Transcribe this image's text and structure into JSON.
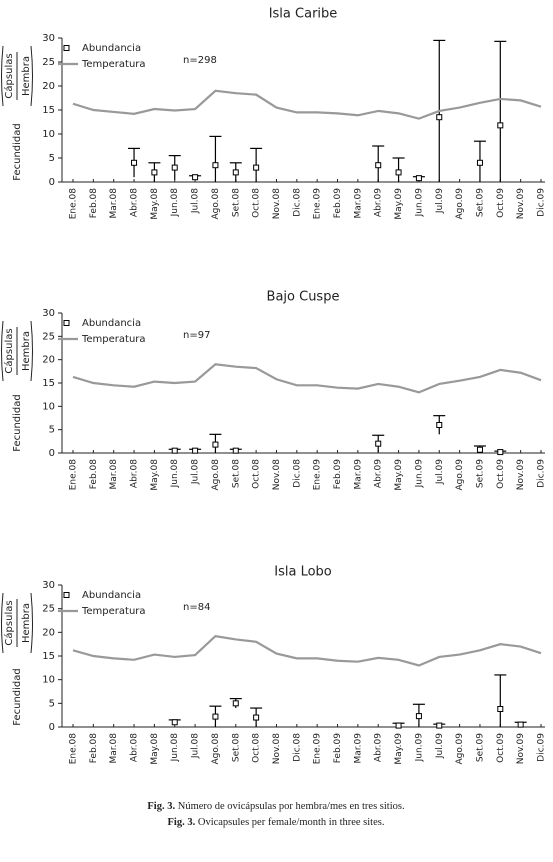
{
  "chart_data": [
    {
      "type": "line",
      "title": "Isla Caribe",
      "annotation": "n=298",
      "ylabel": {
        "main": "Fecundidad",
        "numerator": "Cápsulas",
        "denominator": "Hembra"
      },
      "categories": [
        "Ene.08",
        "Feb.08",
        "Mar.08",
        "Abr.08",
        "May.08",
        "Jun.08",
        "Jul.08",
        "Ago.08",
        "Set.08",
        "Oct.08",
        "Nov.08",
        "Dic.08",
        "Ene.09",
        "Feb.09",
        "Mar.09",
        "Abr.09",
        "May.09",
        "Jun.09",
        "Jul.09",
        "Ago.09",
        "Set.09",
        "Oct.09",
        "Nov.09",
        "Dic.09"
      ],
      "ylim": [
        0,
        30
      ],
      "yticks": [
        0,
        5,
        10,
        15,
        20,
        25,
        30
      ],
      "series": [
        {
          "name": "Abundancia",
          "style": "markers",
          "color": "#000000",
          "values": [
            null,
            null,
            null,
            4,
            2,
            3,
            1,
            3.5,
            2,
            3,
            null,
            null,
            null,
            null,
            null,
            3.5,
            2,
            0.8,
            13.5,
            null,
            4,
            11.8,
            null,
            null
          ],
          "errors": [
            null,
            null,
            null,
            3,
            2,
            2.5,
            0.3,
            6,
            2,
            4,
            null,
            null,
            null,
            null,
            null,
            4,
            3,
            0.3,
            16,
            null,
            4.5,
            17.5,
            null,
            null
          ]
        },
        {
          "name": "Temperatura",
          "style": "line",
          "color": "#999999",
          "values": [
            16.3,
            15,
            14.6,
            14.2,
            15.2,
            14.9,
            15.2,
            19,
            18.5,
            18.2,
            15.5,
            14.5,
            14.5,
            14.3,
            13.9,
            14.8,
            14.3,
            13.2,
            14.8,
            15.5,
            16.5,
            17.3,
            17,
            15.7
          ]
        }
      ]
    },
    {
      "type": "line",
      "title": "Bajo Cuspe",
      "annotation": "n=97",
      "ylabel": {
        "main": "Fecundidad",
        "numerator": "Cápsulas",
        "denominator": "Hembra"
      },
      "categories": [
        "Ene.08",
        "Feb.08",
        "Mar.08",
        "Abr.08",
        "May.08",
        "Jun.08",
        "Jul.08",
        "Ago.08",
        "Set.08",
        "Oct.08",
        "Nov.08",
        "Dic.08",
        "Ene.09",
        "Feb.09",
        "Mar.09",
        "Abr.09",
        "May.09",
        "Jun.09",
        "Jul.09",
        "Ago.09",
        "Set.09",
        "Oct.09",
        "Nov.09",
        "Dic.09"
      ],
      "ylim": [
        0,
        30
      ],
      "yticks": [
        0,
        5,
        10,
        15,
        20,
        25,
        30
      ],
      "series": [
        {
          "name": "Abundancia",
          "style": "markers",
          "color": "#000000",
          "values": [
            null,
            null,
            null,
            null,
            null,
            0.5,
            0.5,
            1.8,
            0.5,
            null,
            null,
            null,
            null,
            null,
            null,
            2,
            null,
            null,
            6,
            null,
            0.7,
            0.2,
            null,
            null
          ],
          "errors": [
            null,
            null,
            null,
            null,
            null,
            0.3,
            0.3,
            2.2,
            0.3,
            null,
            null,
            null,
            null,
            null,
            null,
            1.8,
            null,
            null,
            2,
            null,
            0.8,
            0.2,
            null,
            null
          ]
        },
        {
          "name": "Temperatura",
          "style": "line",
          "color": "#999999",
          "values": [
            16.3,
            15,
            14.5,
            14.2,
            15.3,
            15,
            15.3,
            19,
            18.5,
            18.2,
            15.8,
            14.5,
            14.5,
            14,
            13.8,
            14.8,
            14.2,
            13,
            14.8,
            15.5,
            16.3,
            17.8,
            17.2,
            15.6
          ]
        }
      ]
    },
    {
      "type": "line",
      "title": "Isla Lobo",
      "annotation": "n=84",
      "ylabel": {
        "main": "Fecundidad",
        "numerator": "Cápsulas",
        "denominator": "Hembra"
      },
      "categories": [
        "Ene.08",
        "Feb.08",
        "Mar.08",
        "Abr.08",
        "May.08",
        "Jun.08",
        "Jul.08",
        "Ago.08",
        "Set.08",
        "Oct.08",
        "Nov.08",
        "Dic.08",
        "Ene.09",
        "Feb.09",
        "Mar.09",
        "Abr.09",
        "May.09",
        "Jun.09",
        "Jul.09",
        "Ago.09",
        "Set.09",
        "Oct.09",
        "Nov.09",
        "Dic.09"
      ],
      "ylim": [
        0,
        30
      ],
      "yticks": [
        0,
        5,
        10,
        15,
        20,
        25,
        30
      ],
      "series": [
        {
          "name": "Abundancia",
          "style": "markers",
          "color": "#000000",
          "values": [
            null,
            null,
            null,
            null,
            null,
            1,
            null,
            2.2,
            5,
            2,
            null,
            null,
            null,
            null,
            null,
            null,
            0.3,
            2.3,
            0.3,
            null,
            null,
            3.8,
            0.5,
            null
          ],
          "errors": [
            null,
            null,
            null,
            null,
            null,
            0.5,
            null,
            2.2,
            1,
            2,
            null,
            null,
            null,
            null,
            null,
            null,
            0.5,
            2.5,
            0.3,
            null,
            null,
            7.2,
            0.5,
            null
          ]
        },
        {
          "name": "Temperatura",
          "style": "line",
          "color": "#999999",
          "values": [
            16.2,
            15,
            14.5,
            14.2,
            15.3,
            14.8,
            15.2,
            19.2,
            18.5,
            18,
            15.5,
            14.5,
            14.5,
            14,
            13.8,
            14.6,
            14.2,
            13,
            14.8,
            15.3,
            16.2,
            17.5,
            17,
            15.6
          ]
        }
      ]
    }
  ],
  "caption": {
    "label": "Fig. 3.",
    "es": "Número de ovicápsulas por hembra/mes en tres sitios.",
    "en": "Ovicapsules per female/month in three sites."
  }
}
